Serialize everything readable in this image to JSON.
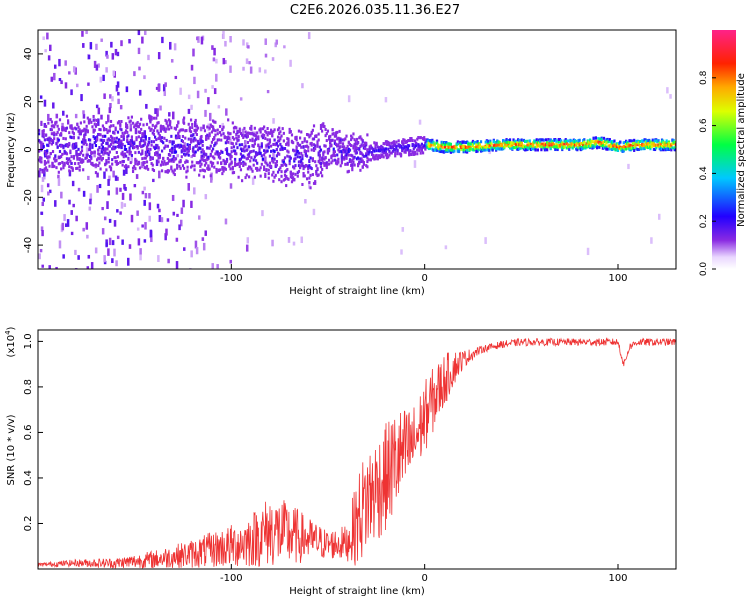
{
  "window": {
    "title": "C2E6.2026.035.11.36.E27"
  },
  "chart_data": [
    {
      "type": "heatmap",
      "title": "C2E6.2026.035.11.36.E27",
      "xlabel": "Height of straight line (km)",
      "ylabel": "Frequency (Hz)",
      "xlim": [
        -200,
        130
      ],
      "ylim": [
        -50,
        50
      ],
      "x_ticks": [
        -100,
        0,
        100
      ],
      "x_tick_labels": [
        "-100",
        "0",
        "100"
      ],
      "y_ticks": [
        -40,
        -20,
        0,
        20,
        40
      ],
      "y_tick_labels": [
        "-40",
        "-20",
        "0",
        "20",
        "40"
      ],
      "grid": false,
      "colorbar": {
        "label": "Normalized spectral amplitude",
        "range": [
          0,
          1
        ],
        "ticks": [
          0.0,
          0.2,
          0.4,
          0.6,
          0.8
        ],
        "tick_labels": [
          "0.0",
          "0.2",
          "0.4",
          "0.6",
          "0.8"
        ],
        "colormap": "rainbow (white-purple-blue-cyan-green-yellow-red-magenta)"
      },
      "description": "Spectral energy concentrated near 0 Hz; scattered noise below about -50 km, narrowing into a tight line (about 2 Hz) of high amplitude above 0 km.",
      "ridge": {
        "x": [
          -190,
          -160,
          -140,
          -120,
          -100,
          -80,
          -60,
          -50,
          -40,
          -30,
          -20,
          -10,
          0,
          10,
          20,
          40,
          60,
          80,
          90,
          100,
          110,
          130
        ],
        "freq": [
          2,
          2,
          2,
          1,
          0,
          -2,
          -4,
          2,
          -2,
          -1,
          0,
          1,
          2,
          1,
          1,
          2,
          2,
          2,
          3,
          1,
          2,
          2
        ],
        "amplitude": [
          0.2,
          0.25,
          0.35,
          0.35,
          0.35,
          0.35,
          0.35,
          0.4,
          0.3,
          0.4,
          0.6,
          0.8,
          0.9,
          0.85,
          0.7,
          0.75,
          0.85,
          0.9,
          0.7,
          0.6,
          0.8,
          0.85
        ]
      }
    },
    {
      "type": "line",
      "xlabel": "Height of straight line (km)",
      "ylabel": "SNR (10 * v/v)",
      "y_multiplier_label": "(x10",
      "y_multiplier_exp": "4",
      "y_multiplier_close": ")",
      "xlim": [
        -200,
        130
      ],
      "ylim": [
        0,
        1.05
      ],
      "x_ticks": [
        -100,
        0,
        100
      ],
      "x_tick_labels": [
        "-100",
        "0",
        "100"
      ],
      "y_ticks": [
        0.2,
        0.4,
        0.6,
        0.8,
        1.0
      ],
      "y_tick_labels": [
        "0.2",
        "0.4",
        "0.6",
        "0.8",
        "1.0"
      ],
      "grid": false,
      "series": [
        {
          "name": "SNR",
          "color": "#ee3333",
          "x": [
            -200,
            -180,
            -160,
            -140,
            -120,
            -100,
            -90,
            -80,
            -70,
            -60,
            -50,
            -40,
            -35,
            -30,
            -25,
            -20,
            -15,
            -10,
            -5,
            0,
            5,
            10,
            15,
            20,
            25,
            30,
            40,
            50,
            60,
            70,
            80,
            90,
            100,
            103,
            106,
            110,
            120,
            130
          ],
          "y": [
            0.02,
            0.03,
            0.03,
            0.05,
            0.08,
            0.12,
            0.15,
            0.2,
            0.18,
            0.15,
            0.12,
            0.13,
            0.25,
            0.35,
            0.4,
            0.45,
            0.52,
            0.55,
            0.6,
            0.7,
            0.78,
            0.85,
            0.9,
            0.93,
            0.95,
            0.97,
            0.99,
            1.0,
            1.0,
            1.0,
            1.0,
            1.0,
            1.0,
            0.9,
            0.98,
            1.0,
            1.0,
            1.0
          ],
          "noise": [
            0.01,
            0.02,
            0.03,
            0.05,
            0.08,
            0.12,
            0.15,
            0.2,
            0.18,
            0.12,
            0.08,
            0.1,
            0.25,
            0.3,
            0.3,
            0.3,
            0.3,
            0.25,
            0.2,
            0.2,
            0.18,
            0.15,
            0.1,
            0.05,
            0.03,
            0.02,
            0.02,
            0.02,
            0.02,
            0.02,
            0.02,
            0.02,
            0.02,
            0.02,
            0.02,
            0.02,
            0.02,
            0.02
          ]
        }
      ]
    }
  ]
}
